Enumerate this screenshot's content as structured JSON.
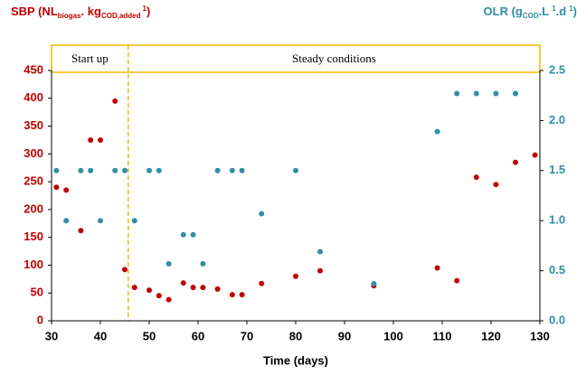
{
  "chart_data": {
    "type": "scatter",
    "ylabel_parts": [
      "SBP (NL",
      "biogas",
      ". kg",
      "COD,added",
      "1",
      ")"
    ],
    "y2label_parts": [
      "OLR (g",
      "COD",
      ".L",
      "1",
      ".d",
      "1",
      ")"
    ],
    "xlabel": "Time (days)",
    "phases": [
      "Start up",
      "Steady conditions"
    ],
    "phase_divider": 45.7,
    "xlim": [
      30,
      130
    ],
    "xticks": [
      30,
      40,
      50,
      60,
      70,
      80,
      90,
      100,
      110,
      120,
      130
    ],
    "ylim": [
      0,
      450
    ],
    "yticks": [
      0,
      50,
      100,
      150,
      200,
      250,
      300,
      350,
      400,
      450
    ],
    "y2lim": [
      0,
      2.5
    ],
    "y2ticks": [
      {
        "value": 0,
        "label": "0.0"
      },
      0.5,
      {
        "value": 1,
        "label": "1.0"
      },
      1.5,
      {
        "value": 2,
        "label": "2.0"
      },
      2.5
    ],
    "series": [
      {
        "name": "SBP",
        "color": "#c00000",
        "x": [
          31,
          33,
          36,
          38,
          40,
          43,
          45,
          47,
          50,
          52,
          54,
          57,
          59,
          61,
          64,
          67,
          69,
          73,
          80,
          85,
          96,
          109,
          113,
          117,
          121,
          125,
          129
        ],
        "values": [
          240,
          235,
          162,
          325,
          325,
          395,
          92,
          60,
          55,
          45,
          38,
          68,
          60,
          60,
          57,
          47,
          47,
          67,
          80,
          90,
          63,
          95,
          72,
          258,
          245,
          285,
          298
        ]
      },
      {
        "name": "OLR",
        "color": "#2e8fa3",
        "axis": "y2",
        "x": [
          31,
          33,
          36,
          38,
          40,
          43,
          45,
          47,
          50,
          52,
          54,
          57,
          59,
          61,
          64,
          67,
          69,
          73,
          80,
          85,
          96,
          109,
          113,
          117,
          121,
          125
        ],
        "values": [
          1.5,
          1.0,
          1.5,
          1.5,
          1.0,
          1.5,
          1.5,
          1.0,
          1.5,
          1.5,
          0.57,
          0.86,
          0.86,
          0.57,
          1.5,
          1.5,
          1.5,
          1.07,
          1.5,
          0.69,
          0.37,
          1.89,
          2.27,
          2.27,
          2.27,
          2.27
        ]
      }
    ]
  }
}
